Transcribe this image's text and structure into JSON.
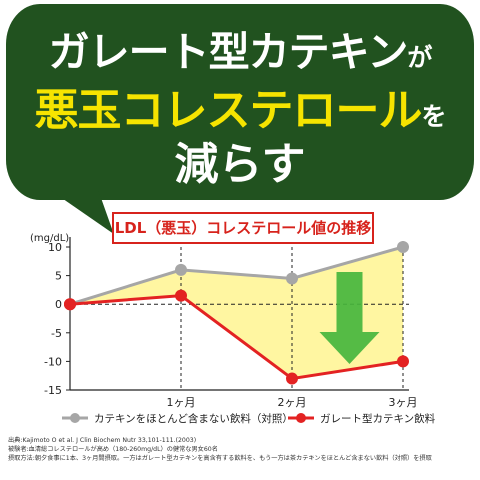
{
  "headline": {
    "line1": "ガレート型カテキン",
    "line1_particle": "が",
    "line2": "悪玉コレステロール",
    "line2_particle": "を",
    "line3": "減らす"
  },
  "colors": {
    "banner": "#21521f",
    "headline_white": "#ffffff",
    "headline_yellow": "#f6e400",
    "control_series": "#a6a6a6",
    "gallate_series": "#e32222",
    "fill": "#fff6a1",
    "arrow": "#46b53d"
  },
  "chart_data": {
    "type": "line",
    "title": "LDL（悪玉）コレステロール値の推移",
    "ylabel": "(mg/dL)",
    "ylim": [
      -15,
      10
    ],
    "yticks": [
      10,
      5,
      0,
      -5,
      -10,
      -15
    ],
    "x": [
      0,
      1,
      2,
      3
    ],
    "xtick_labels": [
      "1ヶ月",
      "2ヶ月",
      "3ヶ月"
    ],
    "series": [
      {
        "name": "カテキンをほとんど含まない飲料（対照）",
        "values": [
          0,
          6,
          4.5,
          10
        ],
        "color": "#a6a6a6"
      },
      {
        "name": "ガレート型カテキン飲料",
        "values": [
          0,
          1.5,
          -13,
          -10
        ],
        "color": "#e32222"
      }
    ],
    "legend_position": "bottom",
    "grid": "vertical dashed at each month",
    "zero_line": "dashed"
  },
  "source": {
    "line1": "出典:Kajimoto O et al. J Clin Biochem Nutr 33,101-111.(2003)",
    "line2": "被験者:血清総コレステロールが高め（180-260mg/dL）の健常な男女60名",
    "line3": "摂取方法:朝夕食事に1本、3ヶ月間摂取。一方はガレート型カテキンを高含有する飲料を、もう一方は茶カテキンをほとんど含まない飲料（対照）を摂取"
  }
}
